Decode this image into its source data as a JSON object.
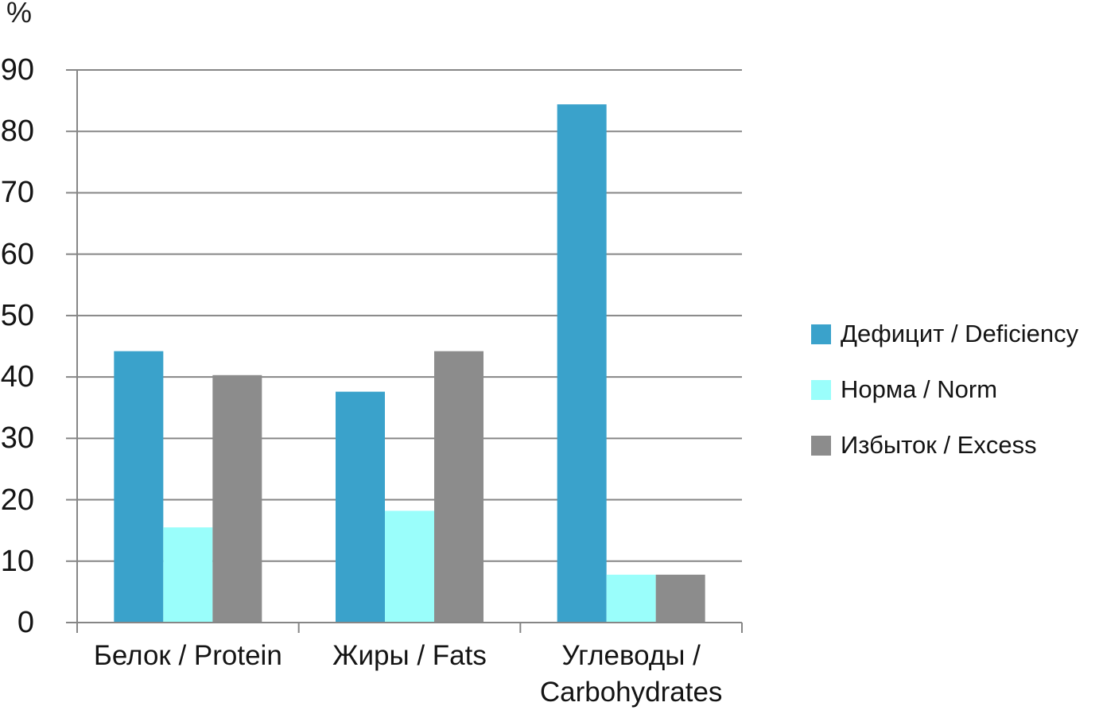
{
  "chart_data": {
    "type": "bar",
    "title": "",
    "xlabel": "",
    "ylabel": "%",
    "categories": [
      "Белок / Protein",
      "Жиры / Fats",
      "Углеводы / Carbohydrates"
    ],
    "series": [
      {
        "name": "Дефицит / Deficiency",
        "color": "#3AA2CB",
        "values": [
          44.2,
          37.6,
          84.4
        ]
      },
      {
        "name": "Норма / Norm",
        "color": "#9AFEFB",
        "values": [
          15.5,
          18.2,
          7.8
        ]
      },
      {
        "name": "Избыток / Excess",
        "color": "#8C8C8C",
        "values": [
          40.3,
          44.2,
          7.8
        ]
      }
    ],
    "ylim": [
      0,
      90
    ],
    "ytick_step": 10,
    "grid": true,
    "legend_position": "right",
    "axis_color": "#868686",
    "text_color": "#141414"
  }
}
